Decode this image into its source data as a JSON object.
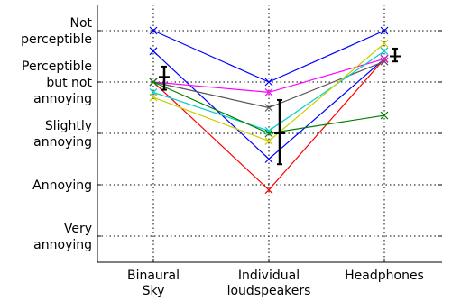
{
  "chart_data": {
    "type": "line",
    "categories": [
      "Binaural\nSky",
      "Individual\nloudspeakers",
      "Headphones"
    ],
    "y_levels": [
      {
        "value": 1,
        "label": "Very\nannoying"
      },
      {
        "value": 2,
        "label": "Annoying"
      },
      {
        "value": 3,
        "label": "Slightly\nannoying"
      },
      {
        "value": 4,
        "label": "Perceptible\nbut not\nannoying"
      },
      {
        "value": 5,
        "label": "Not\nperceptible"
      }
    ],
    "ylim": [
      0.5,
      5.5
    ],
    "grid": "horizontal dotted",
    "marker": "x",
    "series": [
      {
        "color": "#0000ff",
        "values": [
          5.0,
          4.0,
          5.0
        ]
      },
      {
        "color": "#0000ff",
        "values": [
          4.6,
          2.5,
          4.45
        ]
      },
      {
        "color": "#ff0000",
        "values": [
          4.0,
          1.9,
          4.45
        ]
      },
      {
        "color": "#ff00ff",
        "values": [
          4.0,
          3.8,
          4.45
        ]
      },
      {
        "color": "#555555",
        "values": [
          4.0,
          3.5,
          4.4
        ]
      },
      {
        "color": "#00cccc",
        "values": [
          3.8,
          3.05,
          4.6
        ]
      },
      {
        "color": "#cccc00",
        "values": [
          3.7,
          2.85,
          4.75
        ]
      },
      {
        "color": "#008000",
        "values": [
          4.0,
          3.0,
          3.35
        ]
      }
    ],
    "error_bars": [
      {
        "category": 0,
        "mean": 4.1,
        "low": 3.85,
        "high": 4.3
      },
      {
        "category": 1,
        "mean": 3.0,
        "low": 2.4,
        "high": 3.65
      },
      {
        "category": 2,
        "mean": 4.5,
        "low": 4.4,
        "high": 4.65
      }
    ]
  }
}
